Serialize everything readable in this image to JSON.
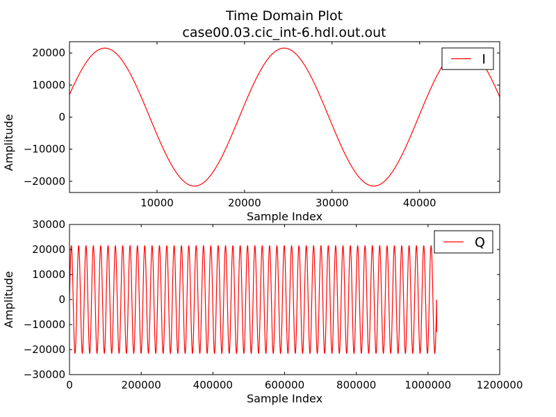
{
  "title_line1": "Time Domain Plot",
  "title_line2": "case00.03.cic_int-6.hdl.out.out",
  "colors": {
    "series": "#ff0000",
    "axes": "#000000",
    "background": "#ffffff"
  },
  "chart_data": [
    {
      "type": "line",
      "xlabel": "Sample Index",
      "ylabel": "Amplitude",
      "xlim": [
        0,
        49152
      ],
      "ylim": [
        -23500,
        23500
      ],
      "xticks": [
        10000,
        20000,
        30000,
        40000
      ],
      "xtick_labels": [
        "10000",
        "20000",
        "30000",
        "40000"
      ],
      "yticks": [
        20000,
        10000,
        0,
        -10000,
        -20000
      ],
      "ytick_labels": [
        "20000",
        "10000",
        "0",
        "−10000",
        "−20000"
      ],
      "grid": false,
      "legend": "top-right",
      "series": [
        {
          "name": "I",
          "color": "#ff0000",
          "amplitude": 21500,
          "period": 20480,
          "phase_deg": 19,
          "x_start": 0,
          "x_end": 49152
        }
      ]
    },
    {
      "type": "line",
      "xlabel": "Sample Index",
      "ylabel": "Amplitude",
      "xlim": [
        0,
        1200000
      ],
      "ylim": [
        -30000,
        30000
      ],
      "xticks": [
        0,
        200000,
        400000,
        600000,
        800000,
        1000000,
        1200000
      ],
      "xtick_labels": [
        "0",
        "200000",
        "400000",
        "600000",
        "800000",
        "1000000",
        "1200000"
      ],
      "yticks": [
        30000,
        20000,
        10000,
        0,
        -10000,
        -20000,
        -30000
      ],
      "ytick_labels": [
        "30000",
        "20000",
        "10000",
        "0",
        "−10000",
        "−20000",
        "−30000"
      ],
      "grid": false,
      "legend": "top-right",
      "series": [
        {
          "name": "Q",
          "color": "#ff0000",
          "amplitude": 21500,
          "period": 20480,
          "phase_deg": 0,
          "x_start": 0,
          "x_end": 1024000,
          "tail_value": -13000
        }
      ]
    }
  ]
}
